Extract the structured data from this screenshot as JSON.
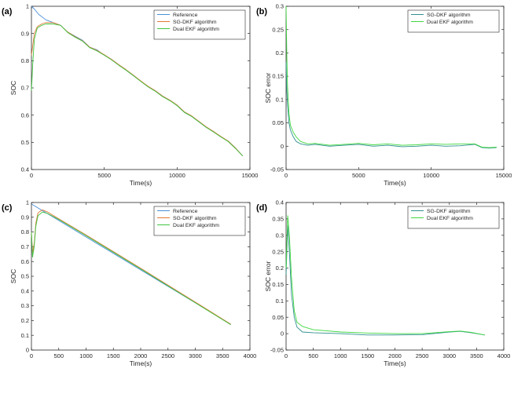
{
  "colors": {
    "reference": "#4a8fd6",
    "sgdkf": "#e07a3a",
    "dualekf": "#3fc43f",
    "sgdkf_err": "#2f8f8f",
    "dualekf_err": "#3fd83f",
    "axis": "#262626"
  },
  "chart_data": [
    {
      "id": "a",
      "type": "line",
      "panel_label": "(a)",
      "xlabel": "Time(s)",
      "ylabel": "SOC",
      "xlim": [
        0,
        15000
      ],
      "ylim": [
        0.4,
        1.0
      ],
      "xticks": [
        0,
        5000,
        10000,
        15000
      ],
      "xtick_labels": [
        "0",
        "5000",
        "10000",
        "15000"
      ],
      "yticks": [
        0.4,
        0.5,
        0.6,
        0.7,
        0.8,
        0.9,
        1.0
      ],
      "ytick_labels": [
        "0.4",
        "0.5",
        "0.6",
        "0.7",
        "0.8",
        "0.9",
        "1"
      ],
      "legend_position": "top-right",
      "series": [
        {
          "name": "Reference",
          "color_key": "reference",
          "x": [
            0,
            200,
            500,
            1000,
            1500,
            2000,
            2500,
            3000,
            3500,
            4000,
            4500,
            5000,
            5500,
            6000,
            6500,
            7000,
            7500,
            8000,
            8500,
            9000,
            9500,
            10000,
            10500,
            11000,
            11500,
            12000,
            12500,
            13000,
            13500,
            14000,
            14500
          ],
          "y": [
            1.0,
            0.99,
            0.97,
            0.95,
            0.94,
            0.93,
            0.905,
            0.89,
            0.875,
            0.85,
            0.84,
            0.82,
            0.805,
            0.785,
            0.765,
            0.745,
            0.725,
            0.705,
            0.69,
            0.67,
            0.655,
            0.635,
            0.61,
            0.595,
            0.575,
            0.555,
            0.54,
            0.52,
            0.505,
            0.48,
            0.45
          ]
        },
        {
          "name": "SG-DKF algorithm",
          "color_key": "sgdkf",
          "x": [
            0,
            100,
            200,
            400,
            700,
            1000,
            1500,
            2000,
            2500,
            3000,
            3500,
            4000,
            4500,
            5000,
            5500,
            6000,
            6500,
            7000,
            7500,
            8000,
            8500,
            9000,
            9500,
            10000,
            10500,
            11000,
            11500,
            12000,
            12500,
            13000,
            13500,
            14000,
            14500
          ],
          "y": [
            0.82,
            0.86,
            0.9,
            0.925,
            0.935,
            0.94,
            0.94,
            0.93,
            0.905,
            0.888,
            0.873,
            0.85,
            0.838,
            0.822,
            0.805,
            0.785,
            0.767,
            0.747,
            0.726,
            0.706,
            0.69,
            0.67,
            0.655,
            0.637,
            0.612,
            0.597,
            0.577,
            0.557,
            0.54,
            0.522,
            0.505,
            0.48,
            0.45
          ]
        },
        {
          "name": "Dual EKF algorithm",
          "color_key": "dualekf",
          "x": [
            0,
            100,
            200,
            400,
            700,
            1000,
            1500,
            2000,
            2500,
            3000,
            3500,
            4000,
            4500,
            5000,
            5500,
            6000,
            6500,
            7000,
            7500,
            8000,
            8500,
            9000,
            9500,
            10000,
            10500,
            11000,
            11500,
            12000,
            12500,
            13000,
            13500,
            14000,
            14500
          ],
          "y": [
            0.69,
            0.8,
            0.88,
            0.92,
            0.93,
            0.935,
            0.935,
            0.93,
            0.903,
            0.886,
            0.872,
            0.848,
            0.836,
            0.82,
            0.803,
            0.783,
            0.765,
            0.745,
            0.724,
            0.704,
            0.688,
            0.668,
            0.653,
            0.635,
            0.61,
            0.595,
            0.575,
            0.555,
            0.538,
            0.52,
            0.503,
            0.478,
            0.45
          ]
        }
      ]
    },
    {
      "id": "b",
      "type": "line",
      "panel_label": "(b)",
      "xlabel": "Time(s)",
      "ylabel": "SOC error",
      "xlim": [
        0,
        15000
      ],
      "ylim": [
        -0.05,
        0.3
      ],
      "xticks": [
        0,
        5000,
        10000,
        15000
      ],
      "xtick_labels": [
        "0",
        "5000",
        "10000",
        "15000"
      ],
      "yticks": [
        -0.05,
        0,
        0.05,
        0.1,
        0.15,
        0.2,
        0.25,
        0.3
      ],
      "ytick_labels": [
        "-0.05",
        "0",
        "0.05",
        "0.1",
        "0.15",
        "0.2",
        "0.25",
        "0.3"
      ],
      "legend_position": "top-right",
      "series": [
        {
          "name": "SG-DKF algorithm",
          "color_key": "sgdkf_err",
          "x": [
            0,
            50,
            100,
            200,
            300,
            500,
            700,
            1000,
            1500,
            2000,
            3000,
            4000,
            5000,
            6000,
            7000,
            8000,
            9000,
            10000,
            11000,
            12000,
            13000,
            13500,
            14000,
            14500
          ],
          "y": [
            0.18,
            0.12,
            0.09,
            0.05,
            0.035,
            0.02,
            0.01,
            0.005,
            0.002,
            0.004,
            0.0,
            0.002,
            0.004,
            0.0,
            0.002,
            -0.001,
            0.0,
            0.002,
            0.0,
            0.001,
            0.004,
            -0.003,
            -0.004,
            -0.003
          ]
        },
        {
          "name": "Dual EKF algorithm",
          "color_key": "dualekf_err",
          "x": [
            0,
            50,
            100,
            200,
            300,
            500,
            700,
            1000,
            1500,
            2000,
            3000,
            4000,
            5000,
            6000,
            7000,
            8000,
            9000,
            10000,
            11000,
            12000,
            13000,
            13500,
            14000,
            14500
          ],
          "y": [
            0.3,
            0.2,
            0.13,
            0.07,
            0.045,
            0.03,
            0.02,
            0.01,
            0.005,
            0.006,
            0.002,
            0.004,
            0.006,
            0.003,
            0.005,
            0.002,
            0.003,
            0.005,
            0.004,
            0.005,
            0.005,
            -0.002,
            -0.003,
            -0.002
          ]
        }
      ]
    },
    {
      "id": "c",
      "type": "line",
      "panel_label": "(c)",
      "xlabel": "Time(s)",
      "ylabel": "SOC",
      "xlim": [
        0,
        4000
      ],
      "ylim": [
        0,
        1
      ],
      "xticks": [
        0,
        500,
        1000,
        1500,
        2000,
        2500,
        3000,
        3500,
        4000
      ],
      "xtick_labels": [
        "0",
        "500",
        "1000",
        "1500",
        "2000",
        "2500",
        "3000",
        "3500",
        "4000"
      ],
      "yticks": [
        0,
        0.1,
        0.2,
        0.3,
        0.4,
        0.5,
        0.6,
        0.7,
        0.8,
        0.9,
        1
      ],
      "ytick_labels": [
        "0",
        "0.1",
        "0.2",
        "0.3",
        "0.4",
        "0.5",
        "0.6",
        "0.7",
        "0.8",
        "0.9",
        "1"
      ],
      "legend_position": "top-right",
      "series": [
        {
          "name": "Reference",
          "color_key": "reference",
          "x": [
            0,
            3650
          ],
          "y": [
            0.99,
            0.175
          ]
        },
        {
          "name": "SG-DKF algorithm",
          "color_key": "sgdkf",
          "x": [
            0,
            20,
            50,
            80,
            120,
            200,
            300,
            500,
            1000,
            2000,
            3000,
            3650
          ],
          "y": [
            0.8,
            0.66,
            0.72,
            0.86,
            0.93,
            0.95,
            0.935,
            0.89,
            0.78,
            0.555,
            0.325,
            0.175
          ]
        },
        {
          "name": "Dual EKF algorithm",
          "color_key": "dualekf",
          "x": [
            0,
            20,
            50,
            80,
            120,
            200,
            300,
            500,
            1000,
            2000,
            3000,
            3650
          ],
          "y": [
            0.8,
            0.63,
            0.7,
            0.84,
            0.91,
            0.935,
            0.925,
            0.885,
            0.775,
            0.55,
            0.32,
            0.172
          ]
        }
      ]
    },
    {
      "id": "d",
      "type": "line",
      "panel_label": "(d)",
      "xlabel": "Time(s)",
      "ylabel": "SOC error",
      "xlim": [
        0,
        4000
      ],
      "ylim": [
        -0.05,
        0.4
      ],
      "xticks": [
        0,
        500,
        1000,
        1500,
        2000,
        2500,
        3000,
        3500,
        4000
      ],
      "xtick_labels": [
        "0",
        "500",
        "1000",
        "1500",
        "2000",
        "2500",
        "3000",
        "3500",
        "4000"
      ],
      "yticks": [
        -0.05,
        0,
        0.05,
        0.1,
        0.15,
        0.2,
        0.25,
        0.3,
        0.35,
        0.4
      ],
      "ytick_labels": [
        "-0.05",
        "0",
        "0.05",
        "0.1",
        "0.15",
        "0.2",
        "0.25",
        "0.3",
        "0.35",
        "0.4"
      ],
      "legend_position": "top-right",
      "series": [
        {
          "name": "SG-DKF algorithm",
          "color_key": "sgdkf_err",
          "x": [
            0,
            30,
            60,
            100,
            150,
            200,
            300,
            500,
            1000,
            1500,
            2000,
            2500,
            3000,
            3200,
            3400,
            3650
          ],
          "y": [
            0.18,
            0.33,
            0.25,
            0.12,
            0.05,
            0.02,
            0.005,
            0.003,
            0.0,
            -0.004,
            -0.004,
            -0.003,
            0.005,
            0.007,
            0.003,
            -0.004
          ]
        },
        {
          "name": "Dual EKF algorithm",
          "color_key": "dualekf_err",
          "x": [
            0,
            30,
            60,
            100,
            150,
            200,
            300,
            500,
            1000,
            1500,
            2000,
            2500,
            3000,
            3200,
            3400,
            3650
          ],
          "y": [
            0.2,
            0.36,
            0.3,
            0.17,
            0.07,
            0.035,
            0.022,
            0.012,
            0.005,
            0.002,
            0.0,
            0.0,
            0.006,
            0.008,
            0.004,
            -0.004
          ]
        }
      ]
    }
  ]
}
